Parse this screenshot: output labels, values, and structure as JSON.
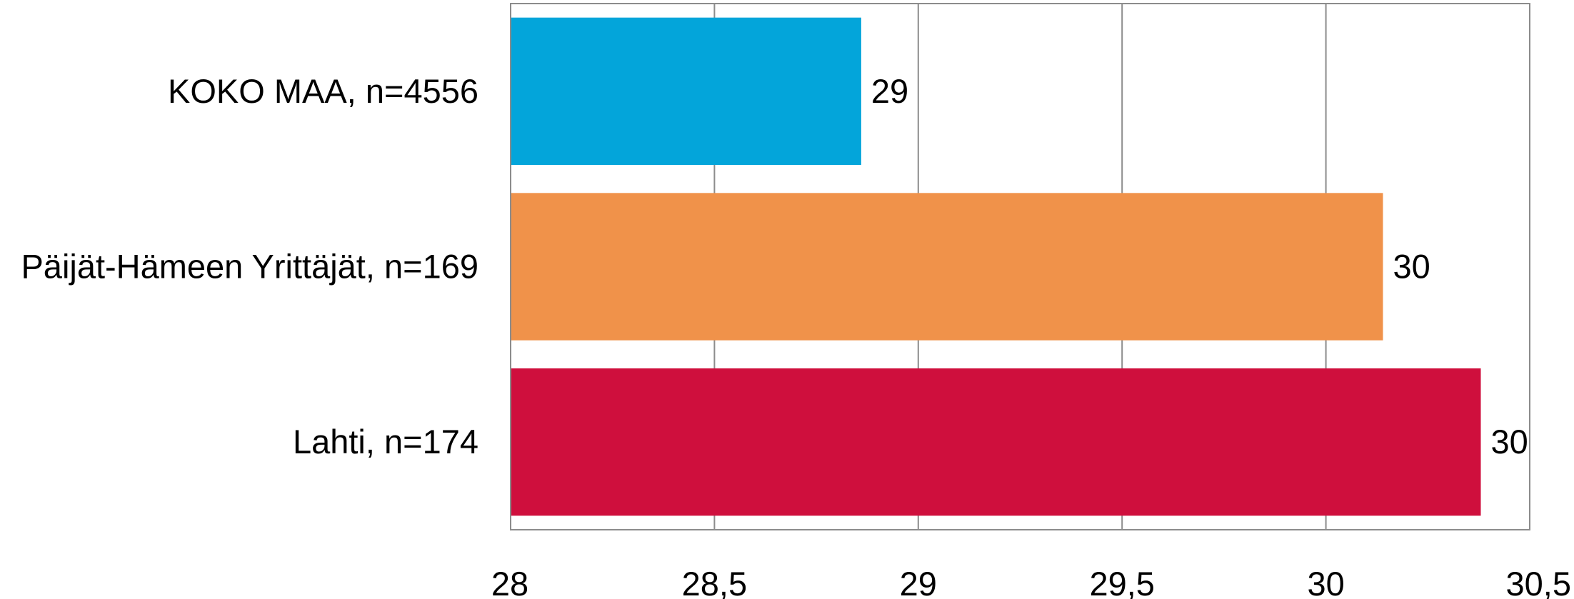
{
  "chart_data": {
    "type": "bar",
    "orientation": "horizontal",
    "categories": [
      "KOKO MAA, n=4556",
      "Päijät-Hämeen Yrittäjät, n=169",
      "Lahti, n=174"
    ],
    "values": [
      28.86,
      30.14,
      30.38
    ],
    "data_labels": [
      "29",
      "30",
      "30"
    ],
    "colors": [
      "#03a5da",
      "#f0924a",
      "#cf0f3d"
    ],
    "xlim": [
      28,
      30.5
    ],
    "xticks": [
      28,
      28.5,
      29,
      29.5,
      30,
      30.5
    ],
    "xtick_labels": [
      "28",
      "28,5",
      "29",
      "29,5",
      "30",
      "30,5"
    ],
    "grid": "vertical",
    "legend": "none",
    "title": "",
    "xlabel": "",
    "ylabel": ""
  }
}
